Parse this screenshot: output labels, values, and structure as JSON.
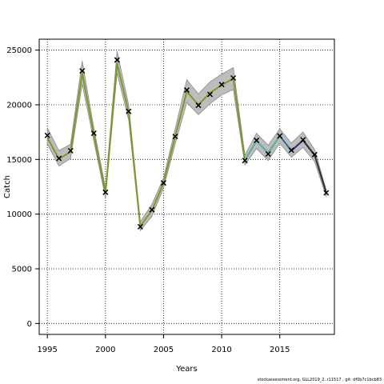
{
  "chart_data": {
    "type": "line",
    "title": "",
    "xlabel": "Years",
    "ylabel": "Catch",
    "xlim": [
      1994.3,
      2019.7
    ],
    "ylim": [
      -1000,
      26000
    ],
    "x_ticks": [
      1995,
      2000,
      2005,
      2010,
      2015
    ],
    "y_ticks": [
      0,
      5000,
      10000,
      15000,
      20000,
      25000
    ],
    "grid": true,
    "grid_style": "dotted",
    "colors": {
      "band": "#bdbdbd",
      "band_edge": "#8a8a8a",
      "line_main": "#7a9a2a",
      "line_2015": "#5ab0a8",
      "line_2016": "#3a6aa0",
      "line_2017": "#3a2a80",
      "line_2018": "#333333",
      "observed": "#000000"
    },
    "band": {
      "x": [
        1995,
        1996,
        1997,
        1998,
        1999,
        2000,
        2001,
        2002,
        2003,
        2004,
        2005,
        2006,
        2007,
        2008,
        2009,
        2010,
        2011,
        2012,
        2013,
        2014,
        2015,
        2016,
        2017,
        2018,
        2019
      ],
      "lower": [
        16400,
        14400,
        15100,
        21900,
        16700,
        11500,
        22900,
        18600,
        8500,
        9800,
        12400,
        16400,
        20200,
        19100,
        20100,
        20900,
        21400,
        14500,
        16000,
        14900,
        16500,
        15200,
        16100,
        14800,
        11600
      ],
      "upper": [
        17900,
        15800,
        16400,
        24000,
        17900,
        12400,
        24900,
        20000,
        9300,
        10900,
        13300,
        17800,
        22300,
        21000,
        22100,
        22800,
        23400,
        15400,
        17400,
        16300,
        17800,
        16500,
        17500,
        15900,
        12200
      ]
    },
    "series": [
      {
        "color_key": "line_main",
        "x": [
          1995,
          1996,
          1997,
          1998,
          1999,
          2000,
          2001,
          2002,
          2003,
          2004,
          2005,
          2006,
          2007,
          2008,
          2009,
          2010,
          2011,
          2012,
          2013,
          2014,
          2015
        ],
        "values": [
          17000,
          15050,
          15700,
          22900,
          17300,
          11950,
          23800,
          19300,
          8900,
          10350,
          12850,
          17100,
          21200,
          20000,
          21100,
          21800,
          22400,
          14950,
          16700,
          15600,
          17150
        ]
      },
      {
        "color_key": "line_2015",
        "x": [
          2012,
          2013,
          2014,
          2015,
          2016
        ],
        "values": [
          14950,
          16700,
          15600,
          17150,
          15800
        ]
      },
      {
        "color_key": "line_2016",
        "x": [
          2015,
          2016,
          2017
        ],
        "values": [
          17150,
          15800,
          16750
        ]
      },
      {
        "color_key": "line_2017",
        "x": [
          2016,
          2017,
          2018
        ],
        "values": [
          15800,
          16750,
          15400
        ]
      },
      {
        "color_key": "line_2018",
        "x": [
          2017,
          2018,
          2019
        ],
        "values": [
          16750,
          15400,
          11950
        ]
      }
    ],
    "observed": {
      "x": [
        1995,
        1996,
        1997,
        1998,
        1999,
        2000,
        2001,
        2002,
        2003,
        2004,
        2005,
        2006,
        2007,
        2008,
        2009,
        2010,
        2011,
        2012,
        2013,
        2014,
        2015,
        2016,
        2017,
        2018,
        2019
      ],
      "y": [
        17200,
        15100,
        15800,
        23100,
        17400,
        12000,
        24100,
        19400,
        8850,
        10400,
        12850,
        17100,
        21350,
        19950,
        20950,
        21850,
        22450,
        14900,
        16750,
        15500,
        17150,
        15850,
        16800,
        15450,
        11950
      ]
    }
  },
  "footer": "stockassessment.org, GLL2019_2, r11517 , git: df0b7c1bcb83"
}
